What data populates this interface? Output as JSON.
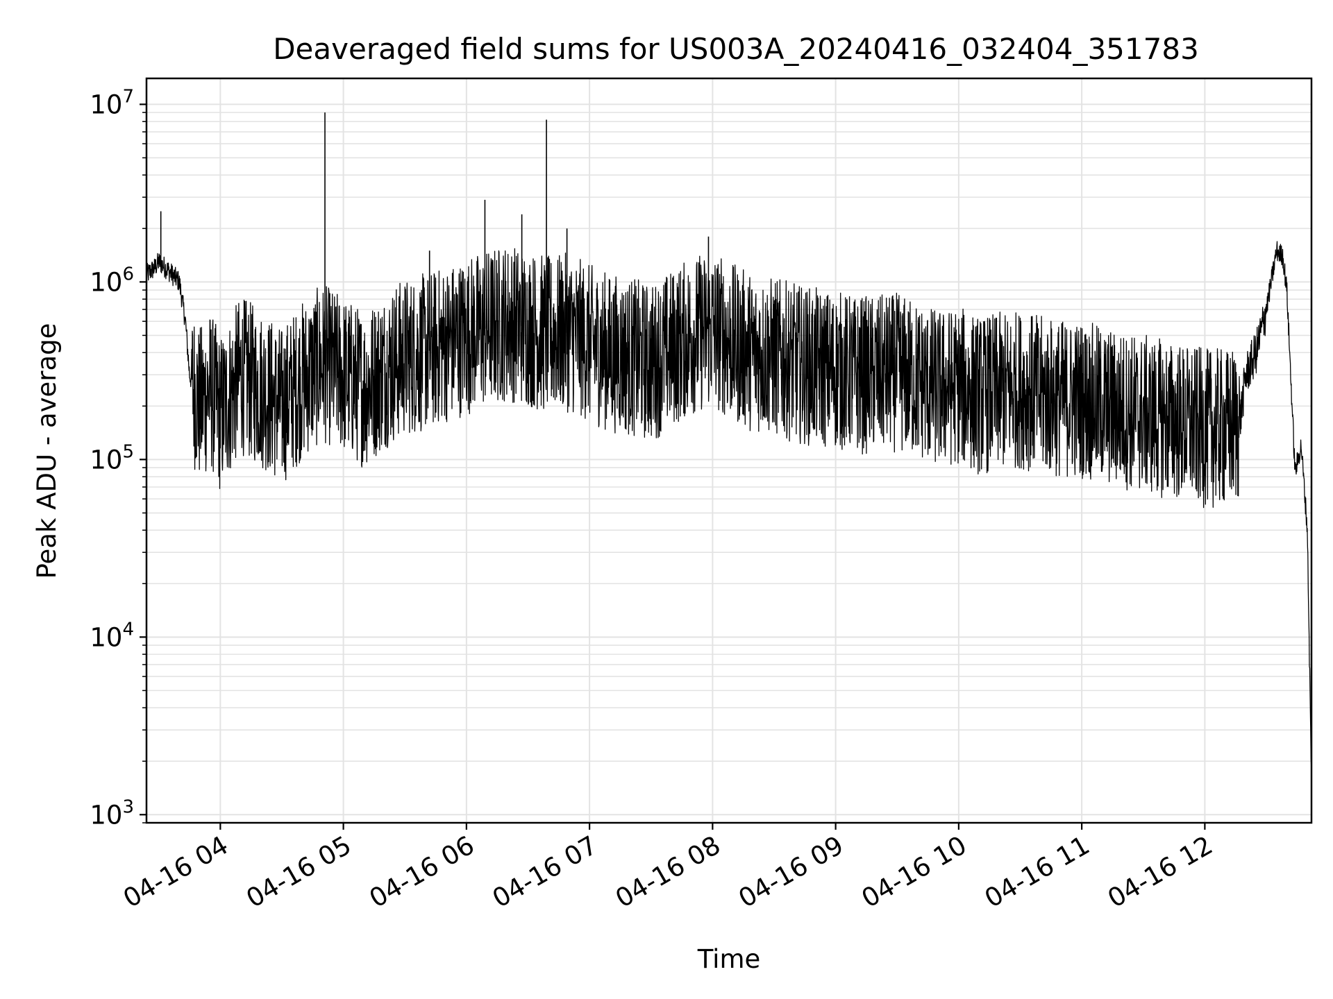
{
  "chart_data": {
    "type": "line",
    "title": "Deaveraged field sums for US003A_20240416_032404_351783",
    "xlabel": "Time",
    "ylabel": "Peak ADU - average",
    "yscale": "log",
    "ylim": [
      900,
      14000000
    ],
    "xlim": [
      "2024-04-16 03:24",
      "2024-04-16 12:52"
    ],
    "x_tick_labels": [
      "04-16 04",
      "04-16 05",
      "04-16 06",
      "04-16 07",
      "04-16 08",
      "04-16 09",
      "04-16 10",
      "04-16 11",
      "04-16 12"
    ],
    "x_ticks": [
      "2024-04-16 04:00",
      "2024-04-16 05:00",
      "2024-04-16 06:00",
      "2024-04-16 07:00",
      "2024-04-16 08:00",
      "2024-04-16 09:00",
      "2024-04-16 10:00",
      "2024-04-16 11:00",
      "2024-04-16 12:00"
    ],
    "y_ticks": [
      {
        "value": 1000,
        "base": "10",
        "exp": "3"
      },
      {
        "value": 10000,
        "base": "10",
        "exp": "4"
      },
      {
        "value": 100000,
        "base": "10",
        "exp": "5"
      },
      {
        "value": 1000000,
        "base": "10",
        "exp": "6"
      },
      {
        "value": 10000000,
        "base": "10",
        "exp": "7"
      }
    ],
    "grid": true,
    "line_color": "#000000",
    "grid_color": "#e3e3e3",
    "series": [
      {
        "x": [
          "2024-04-16 03:24",
          "2024-04-16 03:28",
          "2024-04-16 03:30",
          "2024-04-16 03:35",
          "2024-04-16 03:40",
          "2024-04-16 03:43",
          "2024-04-16 03:45",
          "2024-04-16 03:50",
          "2024-04-16 03:55",
          "2024-04-16 04:00",
          "2024-04-16 04:10",
          "2024-04-16 04:20",
          "2024-04-16 04:30",
          "2024-04-16 04:40",
          "2024-04-16 04:50",
          "2024-04-16 05:00",
          "2024-04-16 05:10",
          "2024-04-16 05:20",
          "2024-04-16 05:30",
          "2024-04-16 05:40",
          "2024-04-16 05:50",
          "2024-04-16 06:00",
          "2024-04-16 06:10",
          "2024-04-16 06:20",
          "2024-04-16 06:30",
          "2024-04-16 06:40",
          "2024-04-16 06:50",
          "2024-04-16 07:00",
          "2024-04-16 07:10",
          "2024-04-16 07:20",
          "2024-04-16 07:30",
          "2024-04-16 07:40",
          "2024-04-16 07:50",
          "2024-04-16 08:00",
          "2024-04-16 08:10",
          "2024-04-16 08:20",
          "2024-04-16 08:30",
          "2024-04-16 08:40",
          "2024-04-16 08:50",
          "2024-04-16 09:00",
          "2024-04-16 09:10",
          "2024-04-16 09:20",
          "2024-04-16 09:30",
          "2024-04-16 09:40",
          "2024-04-16 09:50",
          "2024-04-16 10:00",
          "2024-04-16 10:10",
          "2024-04-16 10:20",
          "2024-04-16 10:30",
          "2024-04-16 10:40",
          "2024-04-16 10:50",
          "2024-04-16 11:00",
          "2024-04-16 11:10",
          "2024-04-16 11:20",
          "2024-04-16 11:30",
          "2024-04-16 11:40",
          "2024-04-16 11:50",
          "2024-04-16 12:00",
          "2024-04-16 12:10",
          "2024-04-16 12:17",
          "2024-04-16 12:20",
          "2024-04-16 12:25",
          "2024-04-16 12:30",
          "2024-04-16 12:33",
          "2024-04-16 12:35",
          "2024-04-16 12:38",
          "2024-04-16 12:40",
          "2024-04-16 12:44",
          "2024-04-16 12:47",
          "2024-04-16 12:50",
          "2024-04-16 12:52"
        ],
        "y": [
          1100000,
          1200000,
          1300000,
          1150000,
          1000000,
          600000,
          300000,
          200000,
          250000,
          180000,
          300000,
          250000,
          200000,
          280000,
          350000,
          300000,
          250000,
          320000,
          380000,
          400000,
          450000,
          500000,
          550000,
          600000,
          550000,
          500000,
          520000,
          450000,
          400000,
          380000,
          350000,
          420000,
          500000,
          550000,
          450000,
          400000,
          380000,
          350000,
          330000,
          320000,
          300000,
          300000,
          310000,
          280000,
          250000,
          260000,
          230000,
          240000,
          250000,
          230000,
          220000,
          220000,
          200000,
          190000,
          180000,
          170000,
          160000,
          150000,
          150000,
          160000,
          300000,
          400000,
          700000,
          1100000,
          1500000,
          1400000,
          900000,
          85000,
          120000,
          40000,
          1500
        ]
      }
    ],
    "spikes": [
      {
        "x": "2024-04-16 03:31",
        "y": 2500000
      },
      {
        "x": "2024-04-16 04:51",
        "y": 9000000
      },
      {
        "x": "2024-04-16 06:09",
        "y": 2900000
      },
      {
        "x": "2024-04-16 06:27",
        "y": 2400000
      },
      {
        "x": "2024-04-16 06:39",
        "y": 8200000
      },
      {
        "x": "2024-04-16 06:49",
        "y": 2000000
      },
      {
        "x": "2024-04-16 07:58",
        "y": 1800000
      },
      {
        "x": "2024-04-16 05:42",
        "y": 1500000
      }
    ]
  }
}
